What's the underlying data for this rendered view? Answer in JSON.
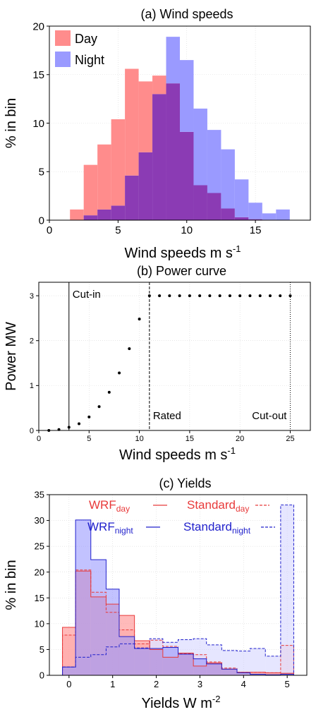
{
  "chart_data": [
    {
      "type": "bar",
      "title": "(a) Wind speeds",
      "xlabel": "Wind speeds m s",
      "xlabel_sup": "-1",
      "ylabel": "% in bin",
      "xlim": [
        0,
        19
      ],
      "ylim": [
        0,
        20
      ],
      "xticks": [
        0,
        5,
        10,
        15
      ],
      "yticks": [
        0,
        5,
        10,
        15,
        20
      ],
      "bin_width": 1,
      "bin_starts": [
        1.5,
        2.5,
        3.5,
        4.5,
        5.5,
        6.5,
        7.5,
        8.5,
        9.5,
        10.5,
        11.5,
        12.5,
        13.5,
        14.5,
        15.5,
        16.5
      ],
      "legend_position": "top-left",
      "series": [
        {
          "name": "Day",
          "color": "#ff8c8c",
          "values": [
            1.1,
            5.7,
            7.8,
            10.4,
            15.6,
            14.3,
            14.9,
            14.1,
            9.1,
            3.6,
            2.8,
            1.2,
            0.3,
            0.1,
            0.05,
            0
          ]
        },
        {
          "name": "Night",
          "color": "#9a9aff",
          "values": [
            0,
            0.5,
            1.1,
            1.5,
            4.6,
            7.0,
            13.0,
            18.9,
            16.5,
            11.5,
            9.3,
            7.3,
            4.2,
            1.8,
            0.7,
            1.1
          ]
        }
      ],
      "overlap_color": "#8b3bb4"
    },
    {
      "type": "scatter",
      "title": "(b) Power curve",
      "xlabel": "Wind speeds m s",
      "xlabel_sup": "-1",
      "ylabel": "Power MW",
      "xlim": [
        0,
        27
      ],
      "ylim": [
        0,
        3.3
      ],
      "xticks": [
        0,
        5,
        10,
        15,
        20,
        25
      ],
      "yticks": [
        0,
        1,
        2,
        3
      ],
      "points": [
        [
          1,
          0
        ],
        [
          2,
          0.02
        ],
        [
          3,
          0.07
        ],
        [
          4,
          0.15
        ],
        [
          5,
          0.3
        ],
        [
          6,
          0.53
        ],
        [
          7,
          0.85
        ],
        [
          8,
          1.28
        ],
        [
          9,
          1.82
        ],
        [
          10,
          2.48
        ],
        [
          11,
          3
        ],
        [
          12,
          3
        ],
        [
          13,
          3
        ],
        [
          14,
          3
        ],
        [
          15,
          3
        ],
        [
          16,
          3
        ],
        [
          17,
          3
        ],
        [
          18,
          3
        ],
        [
          19,
          3
        ],
        [
          20,
          3
        ],
        [
          21,
          3
        ],
        [
          22,
          3
        ],
        [
          23,
          3
        ],
        [
          24,
          3
        ],
        [
          25,
          3
        ]
      ],
      "vlines": [
        {
          "x": 3,
          "label": "Cut-in",
          "style": "solid",
          "label_position": "top"
        },
        {
          "x": 11,
          "label": "Rated",
          "style": "dashed",
          "label_position": "bottom"
        },
        {
          "x": 25,
          "label": "Cut-out",
          "style": "dotted",
          "label_position": "bottom"
        }
      ]
    },
    {
      "type": "bar",
      "title": "(c) Yields",
      "xlabel": "Yields W m",
      "xlabel_sup": "-2",
      "ylabel": "% in bin",
      "xlim": [
        -0.45,
        5.45
      ],
      "ylim": [
        0,
        35
      ],
      "xticks": [
        0,
        1,
        2,
        3,
        4,
        5
      ],
      "yticks": [
        0,
        5,
        10,
        15,
        20,
        25,
        30,
        35
      ],
      "bin_edges": [
        -0.15,
        0.15,
        0.5,
        0.85,
        1.15,
        1.5,
        1.85,
        2.15,
        2.5,
        2.85,
        3.15,
        3.5,
        3.85,
        4.15,
        4.5,
        4.85,
        5.15,
        5.45
      ],
      "legend_position": "top",
      "series": [
        {
          "name": "WRF",
          "subscript": "day",
          "color": "#e83a3a",
          "style": "solid",
          "fill": "#ff8c8c",
          "values": [
            9.3,
            20.2,
            15.2,
            13.8,
            11.6,
            6.7,
            5.0,
            3.5,
            4.3,
            1.8,
            2.4,
            1.2,
            0.6,
            0.6,
            0.5,
            0.4,
            0
          ]
        },
        {
          "name": "Standard",
          "subscript": "day",
          "color": "#e83a3a",
          "style": "dashed",
          "fill": "#ffd1d1",
          "values": [
            7.8,
            20.4,
            16.1,
            12.2,
            8.8,
            6.1,
            6.8,
            5.6,
            4.2,
            4.0,
            2.6,
            1.4,
            0.6,
            0.6,
            0.5,
            5.8,
            0
          ]
        },
        {
          "name": "WRF",
          "subscript": "night",
          "color": "#2222cc",
          "style": "solid",
          "fill": "#9a9aff",
          "values": [
            1.6,
            30.1,
            22.4,
            16.7,
            7.5,
            5.2,
            5.2,
            5.4,
            4.1,
            3.2,
            2.2,
            1.2,
            0.5,
            0.2,
            0.1,
            0.2,
            0
          ]
        },
        {
          "name": "Standard",
          "subscript": "night",
          "color": "#2222cc",
          "style": "dashed",
          "fill": "#d1d1ff",
          "values": [
            1.6,
            3.5,
            4.0,
            5.5,
            6.1,
            5.3,
            7.1,
            6.4,
            6.9,
            7.1,
            5.9,
            4.8,
            4.7,
            5.2,
            3.7,
            33.0,
            0
          ]
        }
      ],
      "overlap_color": "#8b3bb4"
    }
  ]
}
